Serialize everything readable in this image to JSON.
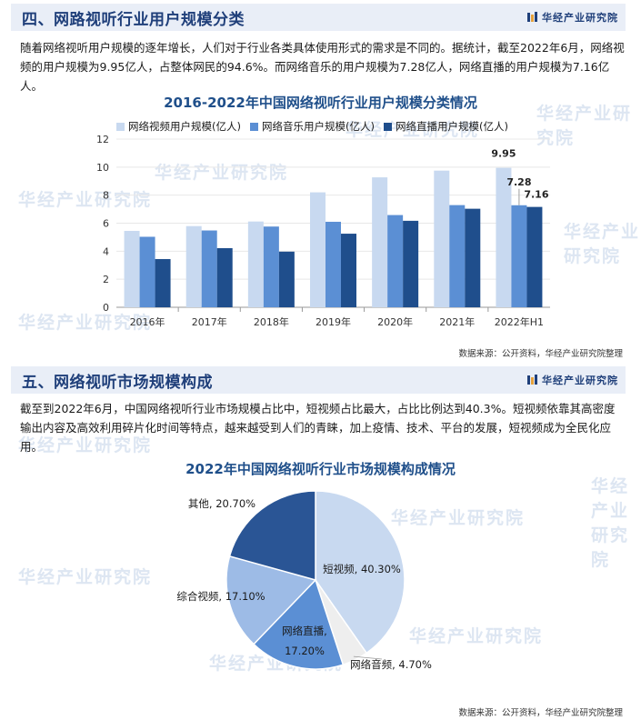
{
  "brand": {
    "name": "华经产业研究院"
  },
  "section1": {
    "title": "四、网路视听行业用户规模分类",
    "paragraph": "随着网络视听用户规模的逐年增长，人们对于行业各类具体使用形式的需求是不同的。据统计，截至2022年6月，网络视频的用户规模为9.95亿人，占整体网民的94.6%。而网络音乐的用户规模为7.28亿人，网络直播的用户规模为7.16亿人。",
    "source": "数据来源：公开资料，华经产业研究院整理"
  },
  "section2": {
    "title": "五、网络视听市场规模构成",
    "paragraph": "截至到2022年6月，中国网络视听行业市场规模占比中，短视频占比最大，占比比例达到40.3%。短视频依靠其高密度输出内容及高效利用碎片化时间等特点，越来越受到人们的青睐，加上疫情、技术、平台的发展，短视频成为全民化应用。",
    "source": "数据来源：公开资料，华经产业研究院整理"
  },
  "chart_data": [
    {
      "type": "bar",
      "title": "2016-2022年中国网络视听行业用户规模分类情况",
      "categories": [
        "2016年",
        "2017年",
        "2018年",
        "2019年",
        "2020年",
        "2021年",
        "2022年H1"
      ],
      "series": [
        {
          "name": "网络视频用户规模(亿人)",
          "color": "#c8d9f0",
          "values": [
            5.45,
            5.79,
            6.12,
            8.2,
            9.27,
            9.75,
            9.95
          ]
        },
        {
          "name": "网络音乐用户规模(亿人)",
          "color": "#5b8fd4",
          "values": [
            5.03,
            5.48,
            5.76,
            6.1,
            6.58,
            7.29,
            7.28
          ]
        },
        {
          "name": "网络直播用户规模(亿人)",
          "color": "#1f4e8c",
          "values": [
            3.44,
            4.22,
            3.97,
            5.25,
            6.17,
            7.03,
            7.16
          ]
        }
      ],
      "data_labels": [
        "9.95",
        "7.28",
        "7.16"
      ],
      "yticks": [
        "0",
        "2",
        "4",
        "6",
        "8",
        "10",
        "12"
      ],
      "ylim": [
        0,
        12
      ],
      "legend_position": "top"
    },
    {
      "type": "pie",
      "title": "2022年中国网络视听行业市场规模构成情况",
      "slices": [
        {
          "name": "短视频",
          "value": 40.3,
          "label": "短视频, 40.30%",
          "color": "#c8d9f0"
        },
        {
          "name": "网络音频",
          "value": 4.7,
          "label": "网络音频, 4.70%",
          "color": "#eeeeee"
        },
        {
          "name": "网络直播",
          "value": 17.2,
          "label": "网络直播,",
          "label2": "17.20%",
          "color": "#5b8fd4"
        },
        {
          "name": "综合视频",
          "value": 17.1,
          "label": "综合视频, 17.10%",
          "color": "#9dbbe6"
        },
        {
          "name": "其他",
          "value": 20.7,
          "label": "其他, 20.70%",
          "color": "#2a5595"
        }
      ]
    }
  ]
}
